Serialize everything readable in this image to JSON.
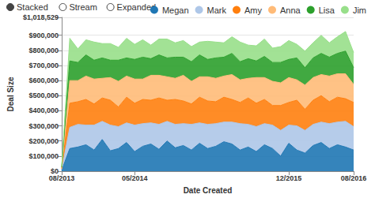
{
  "chart_data": {
    "type": "area",
    "stacked": true,
    "controls": [
      "Stacked",
      "Stream",
      "Expanded"
    ],
    "x_label": "Date Created",
    "y_label": "Deal Size",
    "categories": [
      "08/2013",
      null,
      null,
      null,
      null,
      null,
      null,
      null,
      null,
      "05/2014",
      null,
      null,
      null,
      null,
      null,
      null,
      null,
      null,
      null,
      null,
      null,
      null,
      null,
      null,
      null,
      null,
      null,
      null,
      "12/2015",
      null,
      null,
      null,
      null,
      null,
      null,
      null,
      "08/2016"
    ],
    "series": [
      {
        "name": "Megan",
        "color": "#1f77b4",
        "values": [
          5000,
          150000,
          160000,
          175000,
          140000,
          210000,
          135000,
          150000,
          190000,
          130000,
          165000,
          180000,
          145000,
          200000,
          155000,
          170000,
          140000,
          185000,
          150000,
          165000,
          195000,
          180000,
          140000,
          160000,
          130000,
          175000,
          150000,
          100000,
          185000,
          140000,
          120000,
          170000,
          190000,
          150000,
          175000,
          160000,
          140000
        ]
      },
      {
        "name": "Mark",
        "color": "#aec7e8",
        "values": [
          5000,
          140000,
          150000,
          130000,
          165000,
          120000,
          170000,
          145000,
          130000,
          175000,
          150000,
          140000,
          165000,
          130000,
          155000,
          145000,
          170000,
          135000,
          160000,
          150000,
          130000,
          145000,
          175000,
          150000,
          165000,
          140000,
          155000,
          170000,
          120000,
          160000,
          150000,
          140000,
          135000,
          165000,
          150000,
          170000,
          155000
        ]
      },
      {
        "name": "Amy",
        "color": "#ff7f0e",
        "values": [
          5000,
          160000,
          150000,
          170000,
          140000,
          155000,
          165000,
          130000,
          170000,
          145000,
          160000,
          150000,
          175000,
          140000,
          165000,
          150000,
          135000,
          170000,
          155000,
          145000,
          165000,
          150000,
          140000,
          175000,
          155000,
          160000,
          130000,
          165000,
          150000,
          170000,
          140000,
          160000,
          175000,
          145000,
          165000,
          150000,
          160000
        ]
      },
      {
        "name": "Anna",
        "color": "#ffbb78",
        "values": [
          5000,
          150000,
          140000,
          155000,
          165000,
          130000,
          150000,
          170000,
          140000,
          160000,
          135000,
          165000,
          150000,
          155000,
          140000,
          170000,
          150000,
          135000,
          160000,
          155000,
          140000,
          165000,
          150000,
          130000,
          170000,
          145000,
          160000,
          150000,
          165000,
          135000,
          160000,
          150000,
          140000,
          170000,
          155000,
          165000,
          120000
        ]
      },
      {
        "name": "Lisa",
        "color": "#2ca02c",
        "values": [
          5000,
          130000,
          120000,
          140000,
          125000,
          135000,
          115000,
          140000,
          120000,
          130000,
          145000,
          110000,
          135000,
          125000,
          140000,
          120000,
          130000,
          145000,
          115000,
          135000,
          125000,
          140000,
          120000,
          130000,
          110000,
          140000,
          125000,
          135000,
          120000,
          145000,
          115000,
          130000,
          140000,
          125000,
          135000,
          150000,
          110000
        ]
      },
      {
        "name": "Jim",
        "color": "#98df8a",
        "values": [
          5000,
          150000,
          90000,
          100000,
          120000,
          95000,
          110000,
          85000,
          130000,
          100000,
          115000,
          90000,
          105000,
          125000,
          95000,
          110000,
          100000,
          85000,
          120000,
          105000,
          95000,
          110000,
          130000,
          90000,
          100000,
          115000,
          95000,
          105000,
          125000,
          90000,
          110000,
          100000,
          120000,
          95000,
          110000,
          130000,
          100000
        ]
      }
    ],
    "ylim": [
      0,
      1018529
    ],
    "yticks": [
      {
        "value": 0,
        "label": "$0"
      },
      {
        "value": 100000,
        "label": "$100,000"
      },
      {
        "value": 200000,
        "label": "$200,000"
      },
      {
        "value": 300000,
        "label": "$300,000"
      },
      {
        "value": 400000,
        "label": "$400,000"
      },
      {
        "value": 500000,
        "label": "$500,000"
      },
      {
        "value": 600000,
        "label": "$600,000"
      },
      {
        "value": 700000,
        "label": "$700,000"
      },
      {
        "value": 800000,
        "label": "$800,000"
      },
      {
        "value": 900000,
        "label": "$900,000"
      },
      {
        "value": 1018529,
        "label": "$1,018,529"
      }
    ],
    "grid": true,
    "legend": "top-right"
  }
}
